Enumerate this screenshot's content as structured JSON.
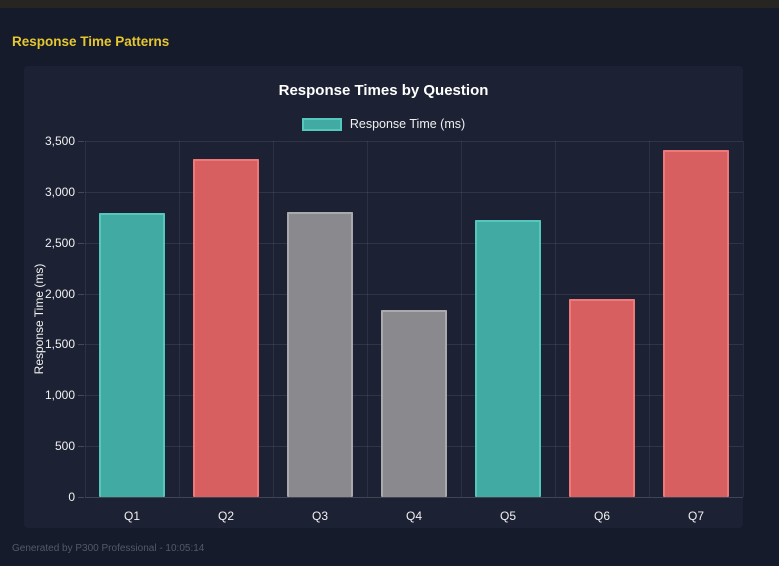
{
  "header": {
    "title": "Response Time Patterns",
    "accent_color": "#e6c72e"
  },
  "footer": {
    "text": "Generated by P300 Professional - 10:05:14"
  },
  "chart_data": {
    "type": "bar",
    "title": "Response Times by Question",
    "legend": [
      {
        "label": "Response Time (ms)",
        "color": "#41aaa2",
        "border_color": "#55c8bd"
      }
    ],
    "legend_position": "top",
    "grid": true,
    "xlabel": "",
    "ylabel": "Response Time (ms)",
    "ylim": [
      0,
      3500
    ],
    "ytick_step": 500,
    "ytick_labels": [
      "0",
      "500",
      "1,000",
      "1,500",
      "2,000",
      "2,500",
      "3,000",
      "3,500"
    ],
    "categories": [
      "Q1",
      "Q2",
      "Q3",
      "Q4",
      "Q5",
      "Q6",
      "Q7"
    ],
    "values": [
      2790,
      3320,
      2800,
      1840,
      2720,
      1950,
      3410
    ],
    "bar_fill_colors": [
      "#41aaa2",
      "#d75f5f",
      "#8a8a8e",
      "#8a8a8e",
      "#41aaa2",
      "#d75f5f",
      "#d75f5f"
    ],
    "bar_border_colors": [
      "#55c8bd",
      "#ef7878",
      "#aaaaae",
      "#aaaaae",
      "#55c8bd",
      "#ef7878",
      "#ef7878"
    ],
    "background_colors": {
      "page": "#161b2b",
      "panel": "#1c2133",
      "topbar": "#262522"
    }
  }
}
